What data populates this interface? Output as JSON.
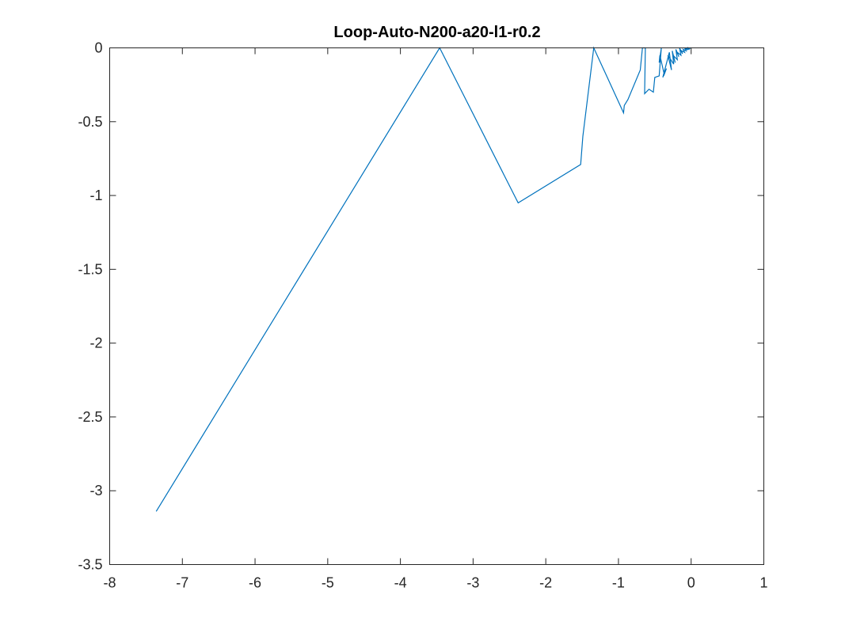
{
  "chart_data": {
    "type": "line",
    "title": "Loop-Auto-N200-a20-l1-r0.2",
    "xlabel": "",
    "ylabel": "",
    "xlim": [
      -8,
      1
    ],
    "ylim": [
      -3.5,
      0
    ],
    "grid": false,
    "xticks": [
      -8,
      -7,
      -6,
      -5,
      -4,
      -3,
      -2,
      -1,
      0,
      1
    ],
    "xtick_labels": [
      "-8",
      "-7",
      "-6",
      "-5",
      "-4",
      "-3",
      "-2",
      "-1",
      "0",
      "1"
    ],
    "yticks": [
      0,
      -0.5,
      -1,
      -1.5,
      -2,
      -2.5,
      -3,
      -3.5
    ],
    "ytick_labels": [
      "0",
      "-0.5",
      "-1",
      "-1.5",
      "-2",
      "-2.5",
      "-3",
      "-3.5"
    ],
    "series": [
      {
        "name": "trajectory",
        "color": "#0072BD",
        "x": [
          -7.36,
          -3.46,
          -2.38,
          -1.52,
          -1.49,
          -1.34,
          -0.93,
          -0.92,
          -0.87,
          -0.7,
          -0.67,
          -0.63,
          -0.64,
          -0.58,
          -0.52,
          -0.5,
          -0.44,
          -0.41,
          -0.44,
          -0.43,
          -0.37,
          -0.34,
          -0.39,
          -0.3,
          -0.27,
          -0.32,
          -0.24,
          -0.26,
          -0.22,
          -0.25,
          -0.19,
          -0.21,
          -0.17,
          -0.19,
          -0.14,
          -0.16,
          -0.12,
          -0.13,
          -0.09,
          -0.11,
          -0.07,
          -0.09,
          -0.05,
          -0.06,
          -0.03,
          -0.04,
          -0.02,
          -0.01,
          0.0
        ],
        "y": [
          -3.14,
          0.0,
          -1.05,
          -0.79,
          -0.6,
          0.0,
          -0.44,
          -0.39,
          -0.35,
          -0.15,
          0.0,
          0.0,
          -0.31,
          -0.28,
          -0.3,
          -0.2,
          -0.19,
          0.0,
          -0.1,
          -0.05,
          -0.18,
          -0.14,
          -0.2,
          -0.03,
          -0.15,
          -0.05,
          -0.11,
          -0.02,
          -0.1,
          -0.05,
          -0.08,
          -0.01,
          -0.06,
          -0.03,
          -0.05,
          0.0,
          -0.04,
          -0.02,
          -0.03,
          -0.01,
          -0.02,
          0.0,
          -0.015,
          -0.005,
          -0.01,
          0.0,
          -0.005,
          0.0,
          0.0
        ]
      }
    ]
  }
}
